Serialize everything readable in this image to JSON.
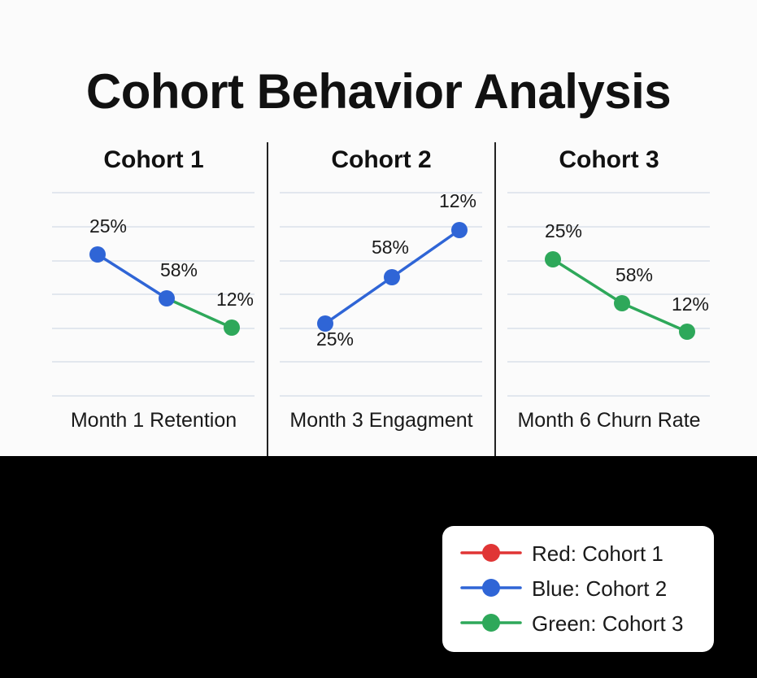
{
  "title": "Cohort Behavior Analysis",
  "colors": {
    "red": "#e03535",
    "blue": "#2f65d6",
    "green": "#2ea85a",
    "grid": "#d3dbe6",
    "text": "#1a1a1a"
  },
  "chart_data": [
    {
      "type": "line",
      "title": "Cohort 1",
      "xlabel": "Month 1 Retention",
      "grid": true,
      "points": [
        {
          "label": "25%",
          "color": "blue"
        },
        {
          "label": "58%",
          "color": "blue"
        },
        {
          "label": "12%",
          "color": "green"
        }
      ]
    },
    {
      "type": "line",
      "title": "Cohort 2",
      "xlabel": "Month 3 Engagment",
      "grid": true,
      "points": [
        {
          "label": "25%",
          "color": "blue"
        },
        {
          "label": "58%",
          "color": "blue"
        },
        {
          "label": "12%",
          "color": "blue"
        }
      ]
    },
    {
      "type": "line",
      "title": "Cohort 3",
      "xlabel": "Month 6 Churn Rate",
      "grid": true,
      "points": [
        {
          "label": "25%",
          "color": "green"
        },
        {
          "label": "58%",
          "color": "green"
        },
        {
          "label": "12%",
          "color": "green"
        }
      ]
    }
  ],
  "legend": {
    "placement": "bottom-right",
    "items": [
      {
        "label": "Red: Cohort 1",
        "color": "red"
      },
      {
        "label": "Blue: Cohort 2",
        "color": "blue"
      },
      {
        "label": "Green: Cohort 3",
        "color": "green"
      }
    ]
  }
}
